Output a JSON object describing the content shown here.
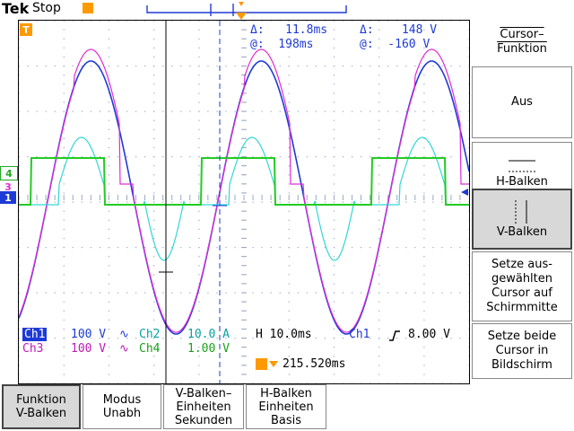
{
  "header": {
    "brand": "Tek",
    "run_state": "Stop"
  },
  "colors": {
    "ch1": "#1e3ad6",
    "ch2": "#33d6d6",
    "ch3": "#e02ad6",
    "ch4": "#22cc22",
    "trigger": "#ff9900",
    "grid": "#9aa7c4"
  },
  "cursor_readout": {
    "delta_time": "Δ:   11.8ms",
    "at_time": "@:  198ms",
    "delta_volt": "Δ:    148 V",
    "at_volt": "@:  -160 V"
  },
  "channel_markers": {
    "ch4": "4",
    "ch3": "3",
    "ch1": "1",
    "trigger": "T"
  },
  "status": {
    "ch1_label": "Ch1",
    "ch1_scale": "100 V",
    "ch2_label": "Ch2",
    "ch2_scale": "10.0 A",
    "ch3_label": "Ch3",
    "ch3_scale": "100 V",
    "ch4_label": "Ch4",
    "ch4_scale": "1.00 V",
    "bw_symbol": "∿",
    "horizontal": "H 10.0ms",
    "trigger_source": "Ch1",
    "trigger_level": "8.00 V",
    "trigger_position": "215.520ms"
  },
  "side_menu": {
    "title": "Cursor–\nFunktion",
    "items": [
      {
        "label": "Aus"
      },
      {
        "label": "H-Balken",
        "icon": "h-bars-icon"
      },
      {
        "label": "V-Balken",
        "icon": "v-bars-icon",
        "selected": true
      },
      {
        "label": "Setze aus-\ngewählten\nCursor auf\nSchirmmitte"
      },
      {
        "label": "Setze beide\nCursor in\nBildschirm"
      }
    ]
  },
  "bottom_menu": [
    {
      "label": "Funktion\nV-Balken",
      "selected": true
    },
    {
      "label": "Modus\nUnabh"
    },
    {
      "label": "V-Balken–\nEinheiten\nSekunden"
    },
    {
      "label": "H-Balken\nEinheiten\nBasis"
    }
  ]
}
